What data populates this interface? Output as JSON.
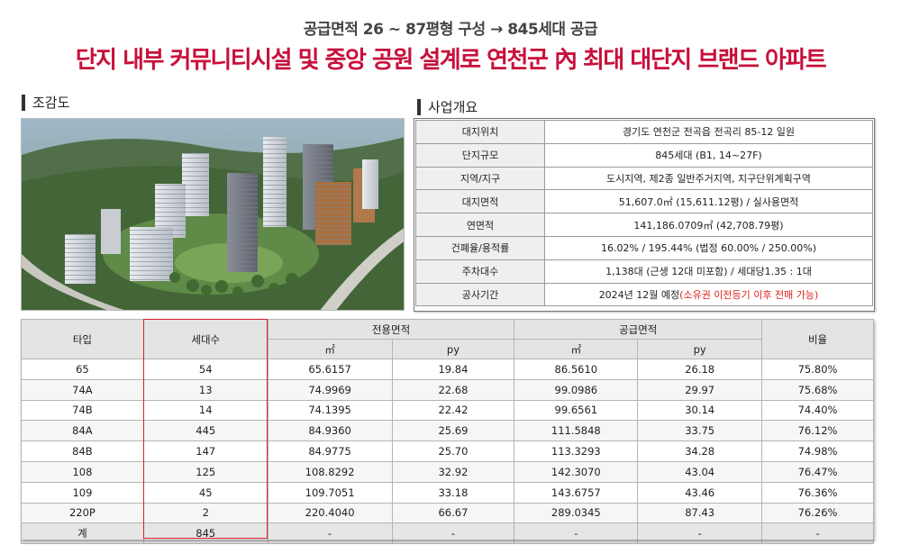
{
  "header": {
    "subtitle": "공급면적 26 ~ 87평형 구성 → 845세대 공급",
    "headline": "단지 내부 커뮤니티시설 및 중앙 공원  설계로 연천군 內 최대 대단지  브랜드 아파트"
  },
  "sections": {
    "aerial_title": "조감도",
    "overview_title": "사업개요"
  },
  "overview": {
    "rows": [
      {
        "label": "대지위치",
        "value": "경기도 연천군 전곡읍 전곡리 85-12 일원"
      },
      {
        "label": "단지규모",
        "value": "845세대 (B1, 14~27F)"
      },
      {
        "label": "지역/지구",
        "value": "도시지역, 제2종 일반주거지역, 지구단위계획구역"
      },
      {
        "label": "대지면적",
        "value": "51,607.0㎡ (15,611.12평) / 실사용면적"
      },
      {
        "label": "연면적",
        "value": "141,186.0709㎡ (42,708.79평)"
      },
      {
        "label": "건폐율/용적률",
        "value": "16.02% / 195.44% (법정 60.00% / 250.00%)"
      },
      {
        "label": "주차대수",
        "value": "1,138대 (근생 12대 미포함) / 세대당1.35 : 1대"
      },
      {
        "label": "공사기간",
        "value": "2024년 12월 예정",
        "note": "(소유권 이전등기 이후 전매 가능)"
      }
    ]
  },
  "units": {
    "headers": {
      "type": "타입",
      "households": "세대수",
      "exclusive": "전용면적",
      "supply": "공급면적",
      "ratio": "비율",
      "sqm": "㎡",
      "py": "py"
    },
    "rows": [
      [
        "65",
        "54",
        "65.6157",
        "19.84",
        "86.5610",
        "26.18",
        "75.80%"
      ],
      [
        "74A",
        "13",
        "74.9969",
        "22.68",
        "99.0986",
        "29.97",
        "75.68%"
      ],
      [
        "74B",
        "14",
        "74.1395",
        "22.42",
        "99.6561",
        "30.14",
        "74.40%"
      ],
      [
        "84A",
        "445",
        "84.9360",
        "25.69",
        "111.5848",
        "33.75",
        "76.12%"
      ],
      [
        "84B",
        "147",
        "84.9775",
        "25.70",
        "113.3293",
        "34.28",
        "74.98%"
      ],
      [
        "108",
        "125",
        "108.8292",
        "32.92",
        "142.3070",
        "43.04",
        "76.47%"
      ],
      [
        "109",
        "45",
        "109.7051",
        "33.18",
        "143.6757",
        "43.46",
        "76.36%"
      ],
      [
        "220P",
        "2",
        "220.4040",
        "66.67",
        "289.0345",
        "87.43",
        "76.26%"
      ]
    ],
    "total": [
      "계",
      "845",
      "-",
      "-",
      "-",
      "-",
      "-"
    ]
  },
  "colors": {
    "headline": "#c8103a",
    "highlight_border": "#d8202a",
    "note_red": "#e0221c"
  }
}
